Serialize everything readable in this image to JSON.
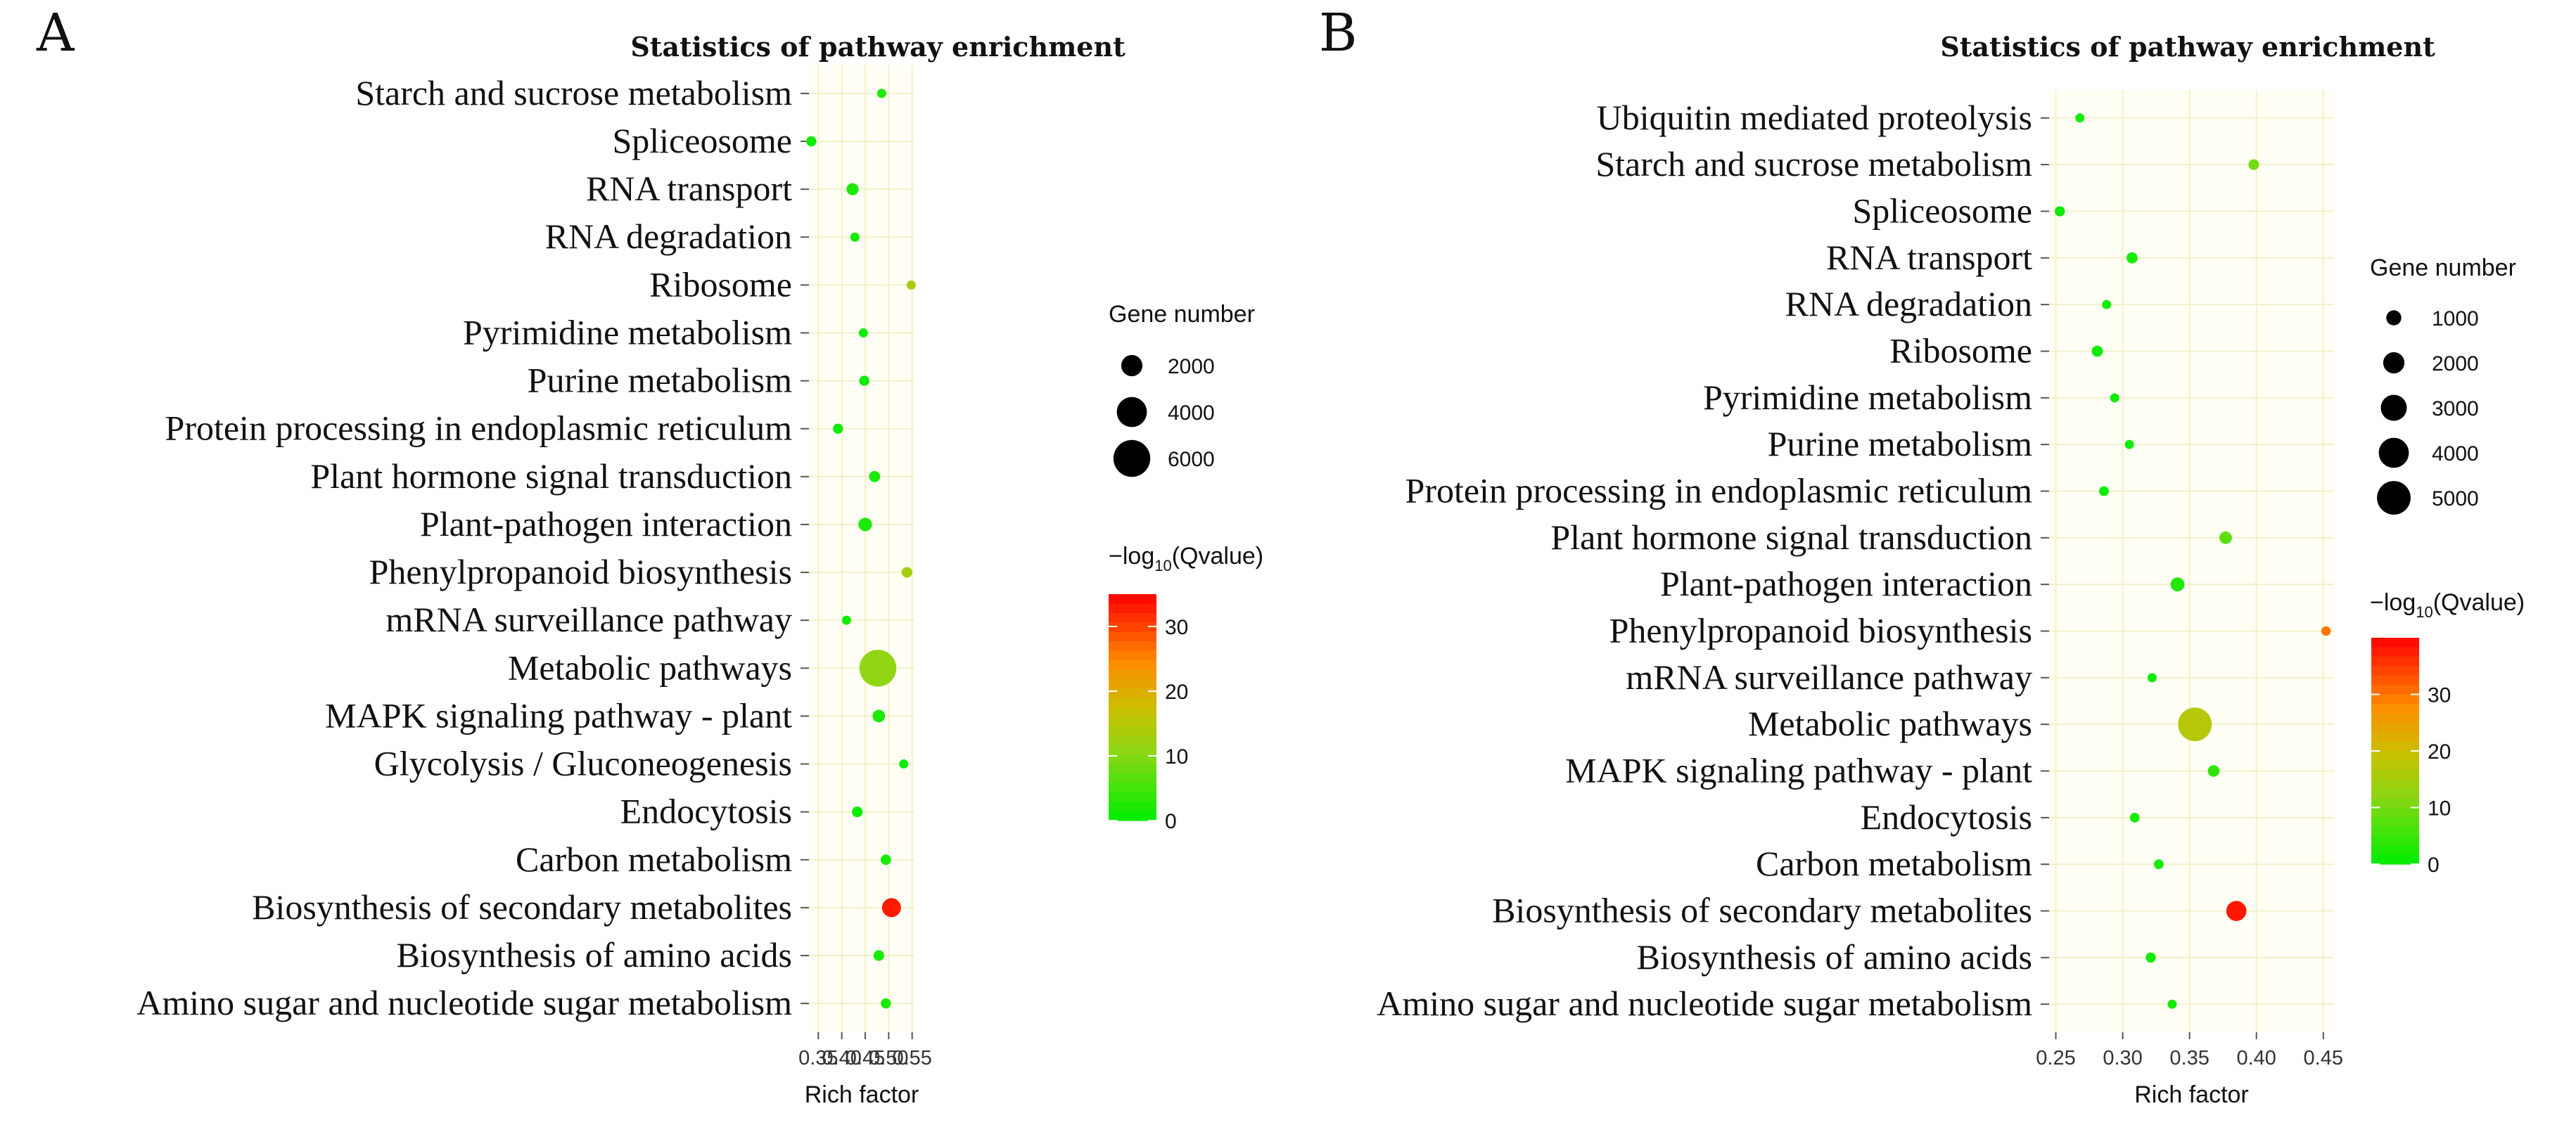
{
  "chart_data": [
    {
      "type": "scatter",
      "panel": "A",
      "title": "Statistics of pathway enrichment",
      "xlabel": "Rich factor",
      "xlim": [
        0.33,
        0.555
      ],
      "xticks": [
        "0.35",
        "0.40",
        "0.45",
        "0.50",
        "0.55"
      ],
      "categories": [
        "Starch and sucrose metabolism",
        "Spliceosome",
        "RNA transport",
        "RNA degradation",
        "Ribosome",
        "Pyrimidine metabolism",
        "Purine metabolism",
        "Protein processing in endoplasmic reticulum",
        "Plant hormone signal transduction",
        "Plant-pathogen interaction",
        "Phenylpropanoid biosynthesis",
        "mRNA surveillance pathway",
        "Metabolic pathways",
        "MAPK signaling pathway - plant",
        "Glycolysis / Gluconeogenesis",
        "Endocytosis",
        "Carbon metabolism",
        "Biosynthesis of secondary metabolites",
        "Biosynthesis of amino acids",
        "Amino sugar and nucleotide sugar metabolism"
      ],
      "rich_factor": [
        0.485,
        0.335,
        0.423,
        0.428,
        0.548,
        0.446,
        0.448,
        0.392,
        0.47,
        0.45,
        0.539,
        0.41,
        0.477,
        0.479,
        0.532,
        0.433,
        0.494,
        0.506,
        0.479,
        0.494
      ],
      "gene_number": [
        300,
        450,
        650,
        180,
        350,
        280,
        450,
        450,
        550,
        800,
        500,
        280,
        6000,
        700,
        280,
        500,
        480,
        1600,
        500,
        450
      ],
      "neg_log10_qvalue": [
        2,
        1,
        2,
        1,
        14,
        1,
        1,
        1,
        2,
        2,
        13,
        1,
        11,
        2,
        1,
        1,
        2,
        33,
        2,
        2
      ],
      "size_legend": {
        "title": "Gene number",
        "values": [
          2000,
          4000,
          6000
        ],
        "labels": [
          "2000",
          "4000",
          "6000"
        ]
      },
      "color_legend": {
        "title_prefix": "−log",
        "title_sub": "10",
        "title_suffix": "(Qvalue)",
        "min": 0,
        "max": 35,
        "ticks": [
          0,
          10,
          20,
          30
        ],
        "tick_labels": [
          "0",
          "10",
          "20",
          "30"
        ]
      }
    },
    {
      "type": "scatter",
      "panel": "B",
      "title": "Statistics of pathway enrichment",
      "xlabel": "Rich factor",
      "xlim": [
        0.245,
        0.458
      ],
      "xticks": [
        "0.25",
        "0.30",
        "0.35",
        "0.40",
        "0.45"
      ],
      "categories": [
        "Ubiquitin mediated proteolysis",
        "Starch and sucrose metabolism",
        "Spliceosome",
        "RNA transport",
        "RNA degradation",
        "Ribosome",
        "Pyrimidine metabolism",
        "Purine metabolism",
        "Protein processing in endoplasmic reticulum",
        "Plant hormone signal transduction",
        "Plant-pathogen interaction",
        "Phenylpropanoid biosynthesis",
        "mRNA surveillance pathway",
        "Metabolic pathways",
        "MAPK signaling pathway - plant",
        "Endocytosis",
        "Carbon metabolism",
        "Biosynthesis of secondary metabolites",
        "Biosynthesis of amino acids",
        "Amino sugar and nucleotide sugar metabolism"
      ],
      "rich_factor": [
        0.268,
        0.398,
        0.253,
        0.307,
        0.288,
        0.281,
        0.294,
        0.305,
        0.286,
        0.377,
        0.341,
        0.452,
        0.322,
        0.354,
        0.368,
        0.309,
        0.327,
        0.385,
        0.321,
        0.337
      ],
      "gene_number": [
        180,
        500,
        450,
        550,
        100,
        550,
        300,
        280,
        420,
        700,
        850,
        400,
        250,
        5000,
        600,
        420,
        420,
        1800,
        450,
        300
      ],
      "neg_log10_qvalue": [
        2,
        10,
        1,
        2,
        1,
        1,
        1,
        1,
        1,
        8,
        3,
        30,
        1,
        17,
        4,
        2,
        2,
        38,
        2,
        2
      ],
      "size_legend": {
        "title": "Gene number",
        "values": [
          1000,
          2000,
          3000,
          4000,
          5000
        ],
        "labels": [
          "1000",
          "2000",
          "3000",
          "4000",
          "5000"
        ]
      },
      "color_legend": {
        "title_prefix": "−log",
        "title_sub": "10",
        "title_suffix": "(Qvalue)",
        "min": 0,
        "max": 40,
        "ticks": [
          0,
          10,
          20,
          30
        ],
        "tick_labels": [
          "0",
          "10",
          "20",
          "30"
        ]
      }
    }
  ]
}
